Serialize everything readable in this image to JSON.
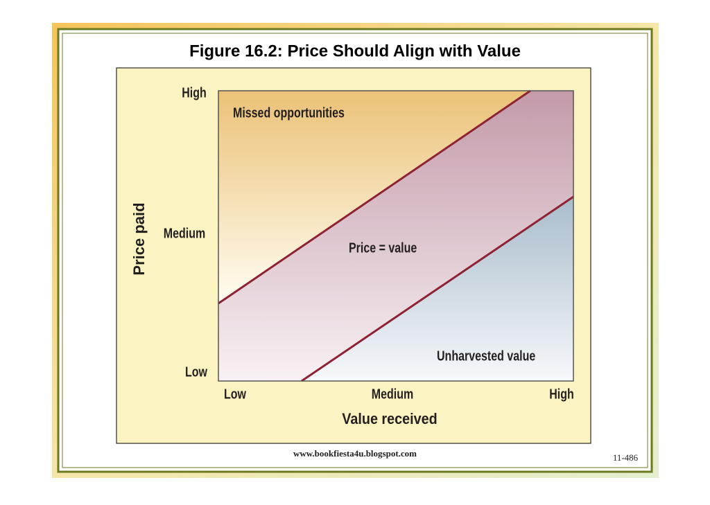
{
  "title": "Figure 16.2: Price Should Align with Value",
  "y_axis": {
    "label": "Price paid",
    "ticks": [
      "High",
      "Medium",
      "Low"
    ]
  },
  "x_axis": {
    "label": "Value received",
    "ticks": [
      "Low",
      "Medium",
      "High"
    ]
  },
  "regions": [
    "Missed opportunities",
    "Price = value",
    "Unharvested value"
  ],
  "footer": {
    "url": "www.bookfiesta4u.blogspot.com",
    "page": "11-486"
  }
}
